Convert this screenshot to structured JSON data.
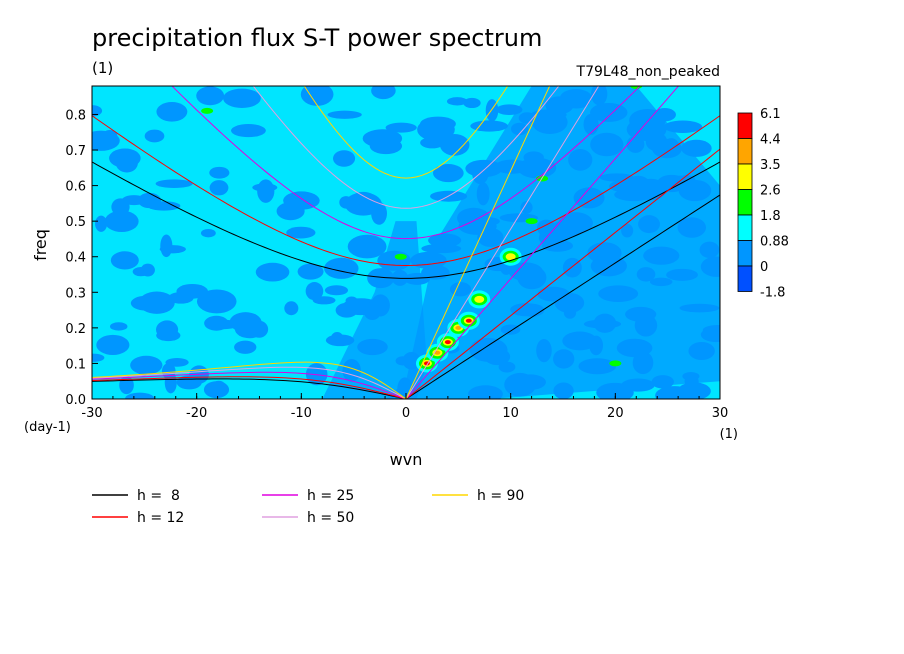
{
  "chart_data": {
    "type": "heatmap",
    "title": "precipitation flux S-T power spectrum",
    "units_label": "(1)",
    "experiment": "T79L48_non_peaked",
    "xlabel": "wvn",
    "ylabel": "freq",
    "x_units": "(1)",
    "y_units": "(day-1)",
    "xlim": [
      -30,
      30
    ],
    "ylim": [
      0,
      0.88
    ],
    "x_ticks": [
      -30,
      -20,
      -10,
      0,
      10,
      20,
      30
    ],
    "x_tick_labels": [
      "-30",
      "-20",
      "-10",
      "0",
      "10",
      "20",
      "30"
    ],
    "y_ticks": [
      0.0,
      0.1,
      0.2,
      0.3,
      0.4,
      0.5,
      0.6,
      0.7,
      0.8
    ],
    "y_tick_labels": [
      "0.0",
      "0.1",
      "0.2",
      "0.3",
      "0.4",
      "0.5",
      "0.6",
      "0.7",
      "0.8"
    ],
    "colorbar": {
      "labels": [
        "6.1",
        "4.4",
        "3.5",
        "2.6",
        "1.8",
        "0.88",
        "0",
        "-1.8"
      ],
      "colors": [
        "#ff0000",
        "#ffa500",
        "#ffff00",
        "#00ff00",
        "#00ffff",
        "#0096ff",
        "#0050ff"
      ]
    },
    "field_background_color": "#00e5ff",
    "field_low_color": "#0096ff",
    "dispersion_curves": [
      {
        "label": "h =  8",
        "h": 8,
        "color": "#000000"
      },
      {
        "label": "h = 12",
        "h": 12,
        "color": "#ff0000"
      },
      {
        "label": "h = 25",
        "h": 25,
        "color": "#e000e0"
      },
      {
        "label": "h = 50",
        "h": 50,
        "color": "#e0a0e0"
      },
      {
        "label": "h = 90",
        "h": 90,
        "color": "#ffd700"
      }
    ],
    "peak_region": {
      "description": "enhanced power along Kelvin-wave branch",
      "points": [
        [
          2,
          0.1
        ],
        [
          3,
          0.13
        ],
        [
          4,
          0.16
        ],
        [
          5,
          0.2
        ],
        [
          6,
          0.22
        ],
        [
          7,
          0.28
        ],
        [
          10,
          0.4
        ]
      ]
    }
  }
}
